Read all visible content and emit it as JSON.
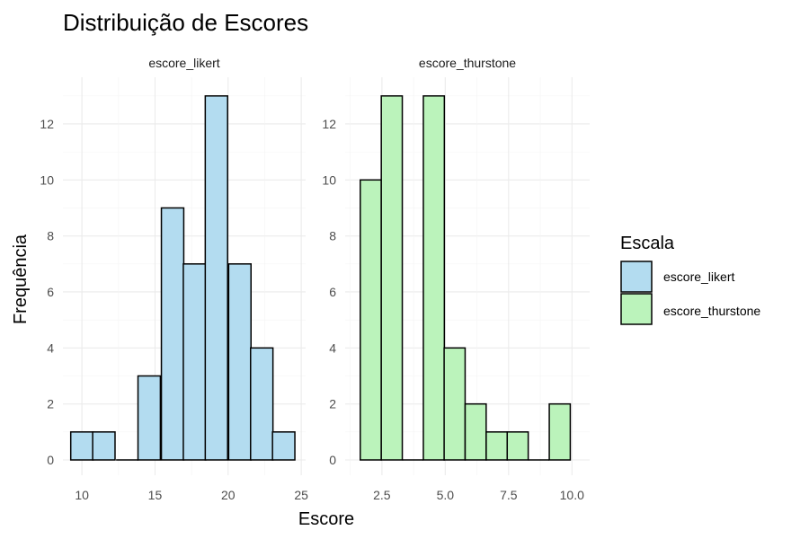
{
  "chart_data": {
    "type": "bar",
    "title": "Distribuição de Escores",
    "xlabel": "Escore",
    "ylabel": "Frequência",
    "grid": true,
    "legend": {
      "title": "Escala",
      "placement": "right",
      "items": [
        {
          "label": "escore_likert",
          "color": "#b3dcf0"
        },
        {
          "label": "escore_thurstone",
          "color": "#bbf3bb"
        }
      ]
    },
    "y_range": [
      0,
      13
    ],
    "y_ticks": [
      0,
      2,
      4,
      6,
      8,
      10,
      12
    ],
    "y_tick_labels": [
      "0",
      "2",
      "4",
      "6",
      "8",
      "10",
      "12"
    ],
    "panels": [
      {
        "strip": "escore_likert",
        "color": "#b3dcf0",
        "x_range": [
          8.7,
          25.3
        ],
        "x_ticks": [
          10,
          15,
          20,
          25
        ],
        "x_tick_labels": [
          "10",
          "15",
          "20",
          "25"
        ],
        "bin_width": 1.53,
        "bins": [
          {
            "x": 10.0,
            "count": 1
          },
          {
            "x": 11.5,
            "count": 1
          },
          {
            "x": 13.1,
            "count": 0
          },
          {
            "x": 14.6,
            "count": 3
          },
          {
            "x": 16.2,
            "count": 9
          },
          {
            "x": 17.7,
            "count": 7
          },
          {
            "x": 19.2,
            "count": 13
          },
          {
            "x": 20.8,
            "count": 7
          },
          {
            "x": 22.3,
            "count": 4
          },
          {
            "x": 23.8,
            "count": 1
          }
        ]
      },
      {
        "strip": "escore_thurstone",
        "color": "#bbf3bb",
        "x_range": [
          1.05,
          10.7
        ],
        "x_ticks": [
          2.5,
          5.0,
          7.5,
          10.0
        ],
        "x_tick_labels": [
          "2.5",
          "5.0",
          "7.5",
          "10.0"
        ],
        "bin_width": 0.829,
        "bins": [
          {
            "x": 2.06,
            "count": 10
          },
          {
            "x": 2.89,
            "count": 13
          },
          {
            "x": 3.72,
            "count": 0
          },
          {
            "x": 4.55,
            "count": 13
          },
          {
            "x": 5.37,
            "count": 4
          },
          {
            "x": 6.2,
            "count": 2
          },
          {
            "x": 7.03,
            "count": 1
          },
          {
            "x": 7.86,
            "count": 1
          },
          {
            "x": 8.69,
            "count": 0
          },
          {
            "x": 9.52,
            "count": 2
          }
        ]
      }
    ]
  }
}
